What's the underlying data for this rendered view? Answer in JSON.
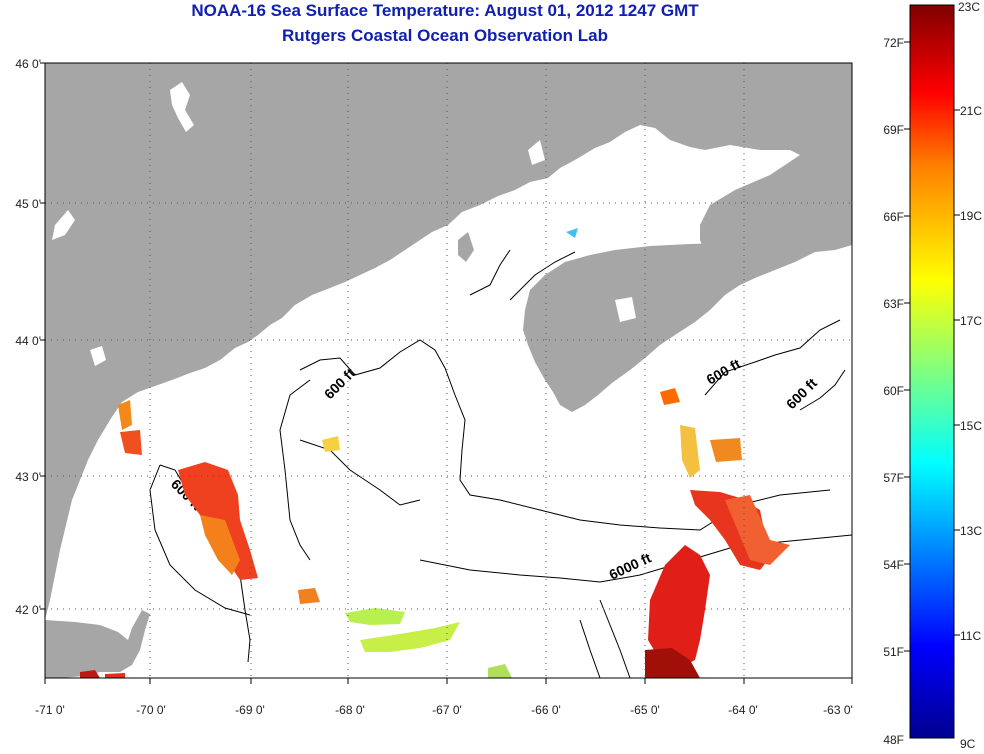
{
  "header": {
    "title": "NOAA-16 Sea Surface Temperature:  August 01, 2012 1247 GMT",
    "subtitle": "Rutgers Coastal Ocean Observation Lab"
  },
  "map": {
    "lon_ticks": [
      "-71 0'",
      "-70 0'",
      "-69 0'",
      "-68 0'",
      "-67 0'",
      "-66 0'",
      "-65 0'",
      "-64 0'",
      "-63 0'"
    ],
    "lat_ticks": [
      "46 0'",
      "45 0'",
      "44 0'",
      "43 0'",
      "42 0'"
    ],
    "contour_labels": [
      "600 ft",
      "600 ft",
      "600 ft",
      "600 ft",
      "6000 ft"
    ],
    "colors": {
      "land": "#a6a6a6",
      "water": "#ffffff",
      "grid": "#555555"
    }
  },
  "colorbar": {
    "celsius_labels": [
      "23C",
      "21C",
      "19C",
      "17C",
      "15C",
      "13C",
      "11C",
      "9C"
    ],
    "fahrenheit_labels": [
      "72F",
      "69F",
      "66F",
      "63F",
      "60F",
      "57F",
      "54F",
      "51F",
      "48F"
    ],
    "min_c": 9,
    "max_c": 23,
    "colors": [
      "#00008f",
      "#0000ff",
      "#0080ff",
      "#00ffff",
      "#80ff80",
      "#ffff00",
      "#ff8000",
      "#ff0000",
      "#800000"
    ]
  }
}
